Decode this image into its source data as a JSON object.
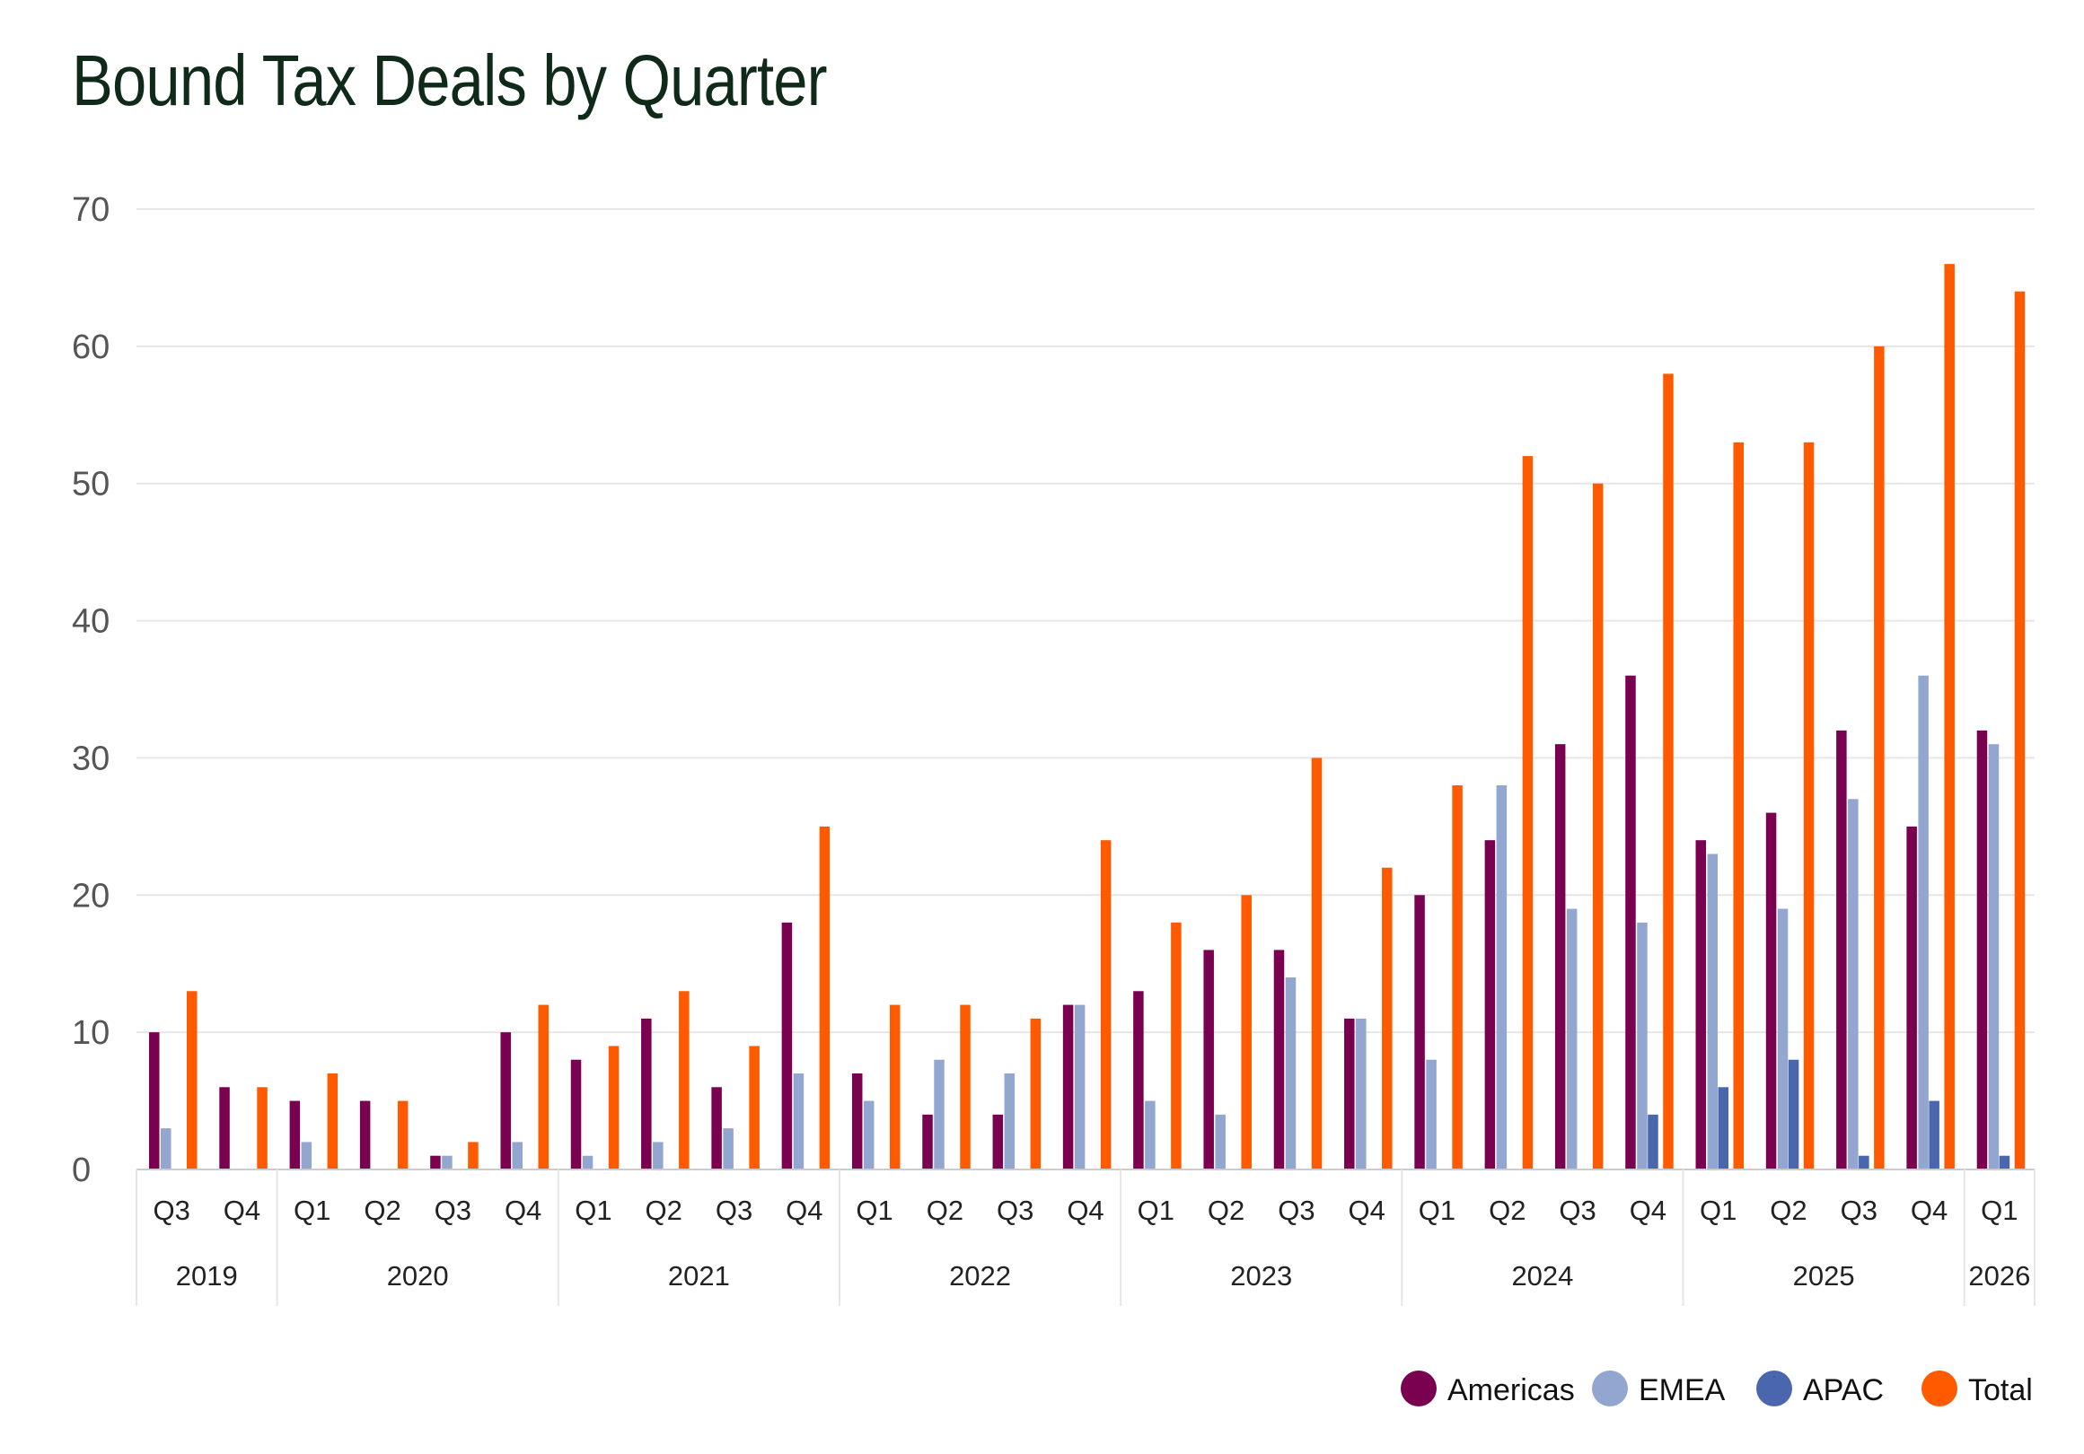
{
  "title": "Bound Tax Deals by Quarter",
  "colors": {
    "americas": "#7a0050",
    "emea": "#93a6cf",
    "apac": "#4a66ad",
    "total": "#ff5a00",
    "grid": "#e6e6e6",
    "axis": "#cccccc"
  },
  "chart_data": {
    "type": "bar",
    "title": "Bound Tax Deals by Quarter",
    "xlabel": "",
    "ylabel": "",
    "ylim": [
      0,
      70
    ],
    "yticks": [
      0,
      10,
      20,
      30,
      40,
      50,
      60,
      70
    ],
    "grid": true,
    "legend_position": "bottom-right",
    "categories": [
      "Q3",
      "Q4",
      "Q1",
      "Q2",
      "Q3",
      "Q4",
      "Q1",
      "Q2",
      "Q3",
      "Q4",
      "Q1",
      "Q2",
      "Q3",
      "Q4",
      "Q1",
      "Q2",
      "Q3",
      "Q4",
      "Q1",
      "Q2",
      "Q3",
      "Q4",
      "Q1",
      "Q2",
      "Q3",
      "Q4",
      "Q1"
    ],
    "groups": [
      {
        "label": "2019",
        "count": 2
      },
      {
        "label": "2020",
        "count": 4
      },
      {
        "label": "2021",
        "count": 4
      },
      {
        "label": "2022",
        "count": 4
      },
      {
        "label": "2023",
        "count": 4
      },
      {
        "label": "2024",
        "count": 4
      },
      {
        "label": "2025",
        "count": 4
      },
      {
        "label": "2026",
        "count": 1
      }
    ],
    "series": [
      {
        "name": "Americas",
        "color": "#7a0050",
        "values": [
          10,
          6,
          5,
          5,
          1,
          10,
          8,
          11,
          6,
          18,
          7,
          4,
          4,
          12,
          13,
          16,
          16,
          11,
          20,
          24,
          31,
          36,
          24,
          26,
          32,
          25,
          32
        ]
      },
      {
        "name": "EMEA",
        "color": "#93a6cf",
        "values": [
          3,
          0,
          2,
          0,
          1,
          2,
          1,
          2,
          3,
          7,
          5,
          8,
          7,
          12,
          5,
          4,
          14,
          11,
          8,
          28,
          19,
          18,
          23,
          19,
          27,
          36,
          31
        ]
      },
      {
        "name": "APAC",
        "color": "#4a66ad",
        "values": [
          0,
          0,
          0,
          0,
          0,
          0,
          0,
          0,
          0,
          0,
          0,
          0,
          0,
          0,
          0,
          0,
          0,
          0,
          0,
          0,
          0,
          4,
          6,
          8,
          1,
          5,
          1
        ]
      },
      {
        "name": "Total",
        "color": "#ff5a00",
        "values": [
          13,
          6,
          7,
          5,
          2,
          12,
          9,
          13,
          9,
          25,
          12,
          12,
          11,
          24,
          18,
          20,
          30,
          22,
          28,
          52,
          50,
          58,
          53,
          53,
          60,
          66,
          64
        ]
      }
    ]
  }
}
